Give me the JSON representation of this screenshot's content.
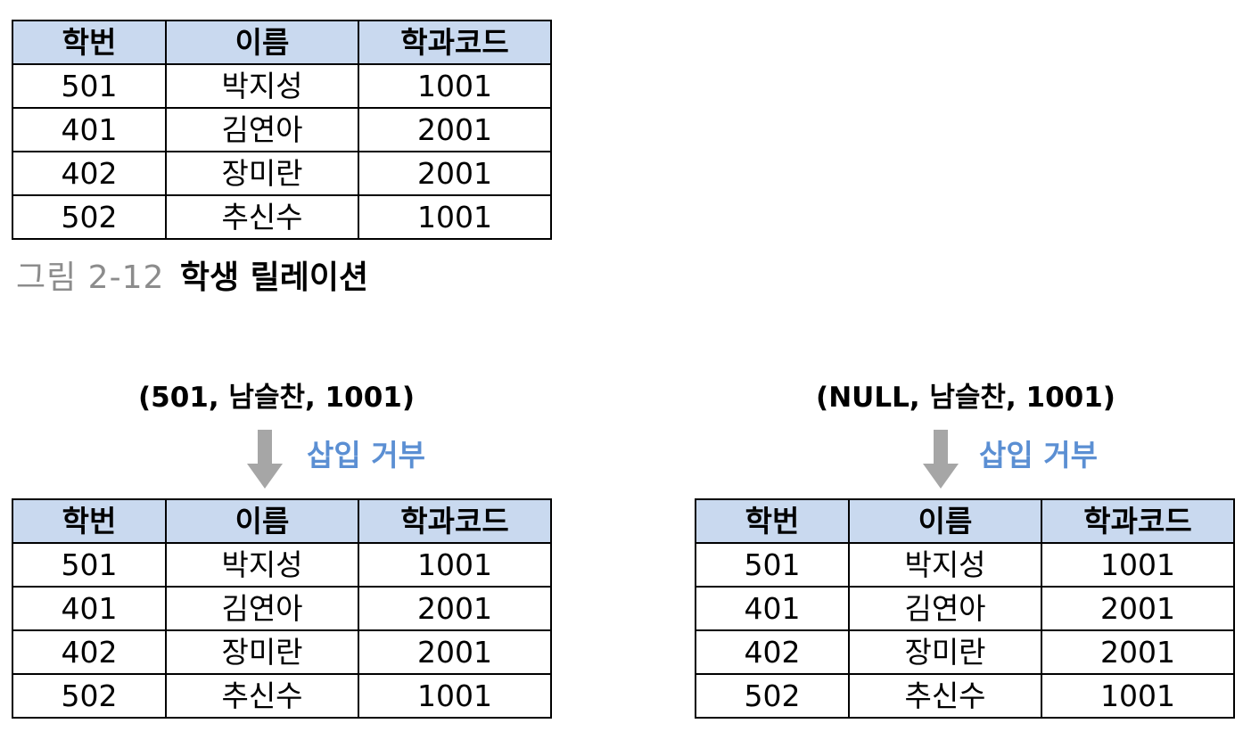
{
  "relation": {
    "headers": [
      "학번",
      "이름",
      "학과코드"
    ],
    "rows": [
      [
        "501",
        "박지성",
        "1001"
      ],
      [
        "401",
        "김연아",
        "2001"
      ],
      [
        "402",
        "장미란",
        "2001"
      ],
      [
        "502",
        "추신수",
        "1001"
      ]
    ]
  },
  "caption": {
    "number": "그림 2-12",
    "title": "학생 릴레이션"
  },
  "insert_left": {
    "tuple": "(501, 남슬찬, 1001)",
    "result": "삽입 거부"
  },
  "insert_right": {
    "tuple": "(NULL, 남슬찬, 1001)",
    "result": "삽입 거부"
  },
  "colors": {
    "header_fill": "#c9d9ef",
    "reject_text": "#5b8fd3",
    "arrow": "#a6a6a6",
    "caption_number": "#8c8c8c"
  }
}
